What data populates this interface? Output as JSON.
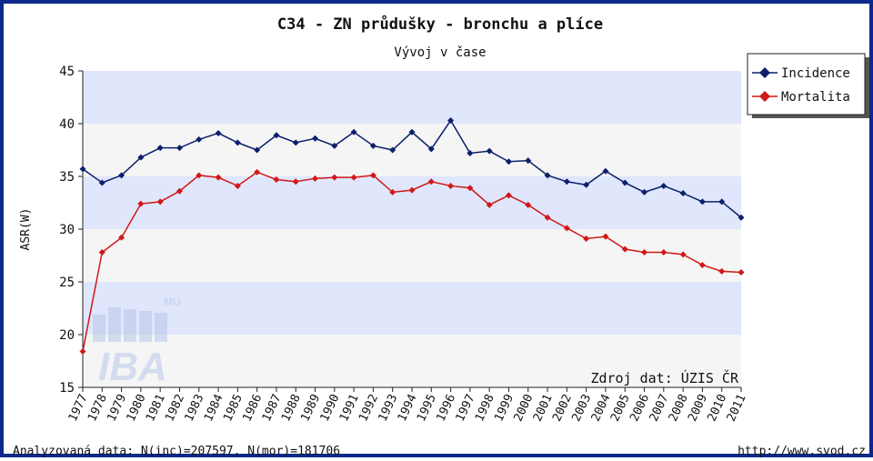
{
  "chart_data": {
    "type": "line",
    "title": "C34 - ZN průdušky - bronchu a plíce",
    "subtitle": "Vývoj v čase",
    "xlabel": "",
    "ylabel": "ASR(W)",
    "ylim": [
      15,
      45
    ],
    "yticks": [
      15,
      20,
      25,
      30,
      35,
      40,
      45
    ],
    "grid": true,
    "legend_position": "top-right",
    "categories": [
      "1977",
      "1978",
      "1979",
      "1980",
      "1981",
      "1982",
      "1983",
      "1984",
      "1985",
      "1986",
      "1987",
      "1988",
      "1989",
      "1990",
      "1991",
      "1992",
      "1993",
      "1994",
      "1995",
      "1996",
      "1997",
      "1998",
      "1999",
      "2000",
      "2001",
      "2002",
      "2003",
      "2004",
      "2005",
      "2006",
      "2007",
      "2008",
      "2009",
      "2010",
      "2011"
    ],
    "series": [
      {
        "name": "Incidence",
        "color": "#0b1f6b",
        "values": [
          35.7,
          34.4,
          35.1,
          36.8,
          37.7,
          37.7,
          38.5,
          39.1,
          38.2,
          37.5,
          38.9,
          38.2,
          38.6,
          37.9,
          39.2,
          37.9,
          37.5,
          39.2,
          37.6,
          40.3,
          37.2,
          37.4,
          36.4,
          36.5,
          35.1,
          34.5,
          34.2,
          35.5,
          34.4,
          33.5,
          34.1,
          33.4,
          32.6,
          32.6,
          31.1
        ]
      },
      {
        "name": "Mortalita",
        "color": "#d01818",
        "values": [
          18.4,
          27.8,
          29.2,
          32.4,
          32.6,
          33.6,
          35.1,
          34.9,
          34.1,
          35.4,
          34.7,
          34.5,
          34.8,
          34.9,
          34.9,
          35.1,
          33.5,
          33.7,
          34.5,
          34.1,
          33.9,
          32.3,
          33.2,
          32.3,
          31.1,
          30.1,
          29.1,
          29.3,
          28.1,
          27.8,
          27.8,
          27.6,
          26.6,
          26.0,
          25.9
        ]
      }
    ],
    "band_colors": [
      "#e0e6fb",
      "#f5f5f5"
    ],
    "source_note": "Zdroj dat: ÚZIS ČR",
    "watermark_text": "IBA",
    "watermark_small": "MU"
  },
  "footer": {
    "left": "Analyzovaná data: N(inc)=207597, N(mor)=181706",
    "right": "http://www.svod.cz"
  }
}
